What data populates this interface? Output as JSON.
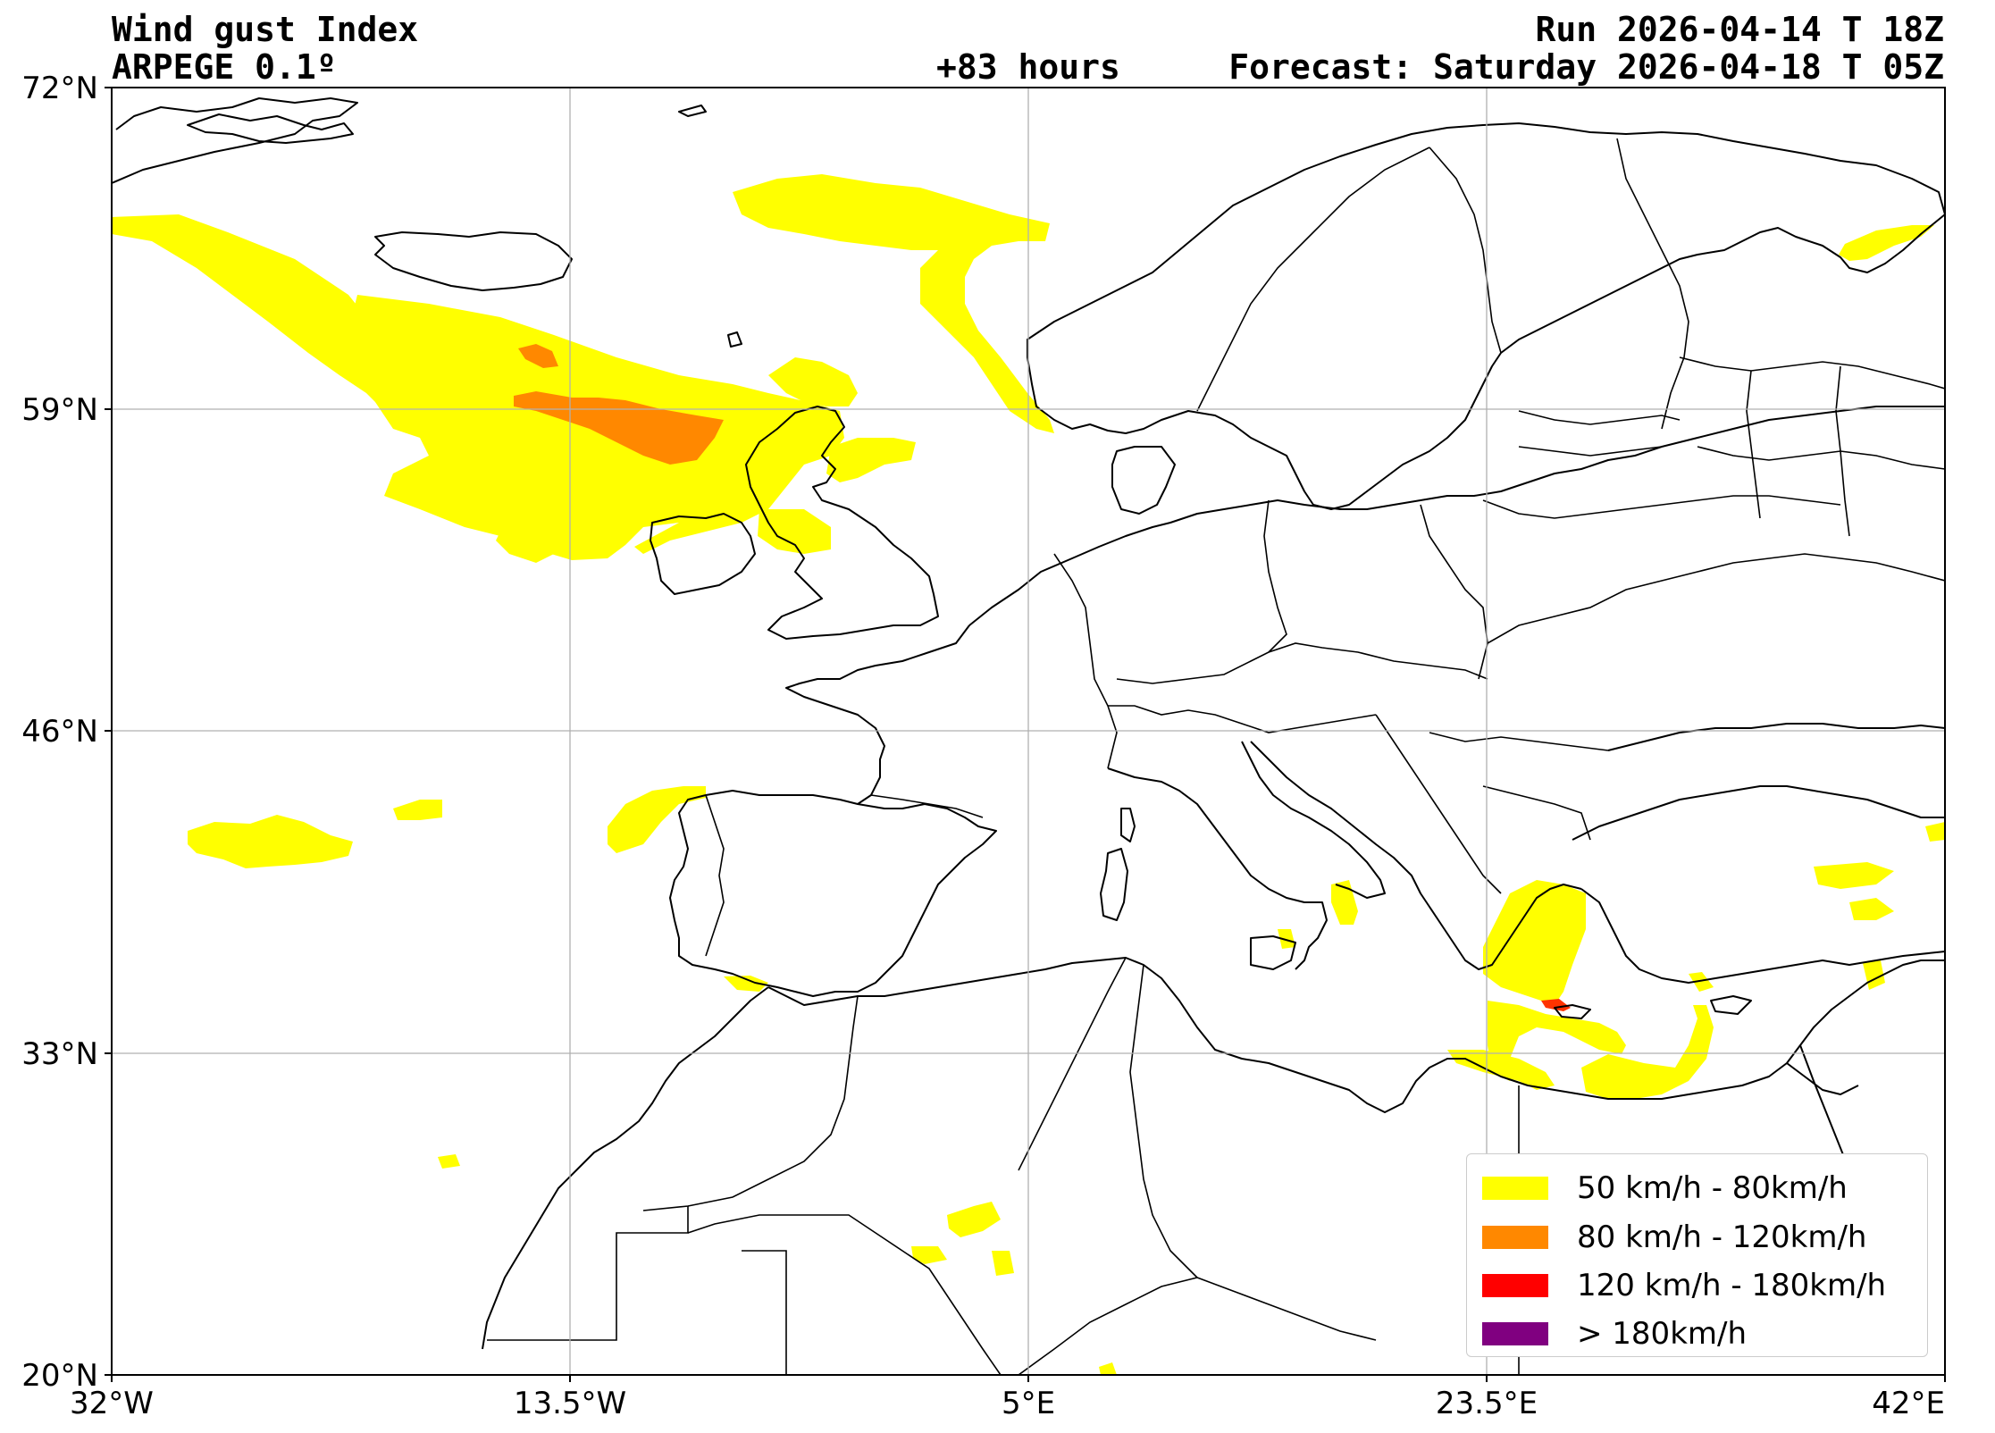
{
  "header": {
    "title": "Wind gust Index",
    "model": "ARPEGE 0.1º",
    "run": "Run 2026-04-14 T 18Z",
    "lead_time": "+83 hours",
    "forecast": "Forecast: Saturday 2026-04-18 T 05Z"
  },
  "axes": {
    "lat_ticks": [
      "72°N",
      "59°N",
      "46°N",
      "33°N",
      "20°N"
    ],
    "lon_ticks": [
      "32°W",
      "13.5°W",
      "5°E",
      "23.5°E",
      "42°E"
    ],
    "lat_range": [
      20,
      72
    ],
    "lon_range": [
      -32,
      42
    ],
    "grid": true
  },
  "legend": {
    "placement": "bottom-right",
    "items": [
      {
        "label": "50 km/h - 80km/h",
        "color": "#ffff00"
      },
      {
        "label": "80 km/h - 120km/h",
        "color": "#ff8800"
      },
      {
        "label": "120 km/h - 180km/h",
        "color": "#ff0000"
      },
      {
        "label": "> 180km/h",
        "color": "#800080"
      }
    ]
  },
  "colors": {
    "gust_50_80": "#ffff00",
    "gust_80_120": "#ff8800",
    "gust_120_180": "#ff0000",
    "gust_180_plus": "#800080",
    "coastline": "#000000",
    "gridline": "#b0b0b0"
  }
}
